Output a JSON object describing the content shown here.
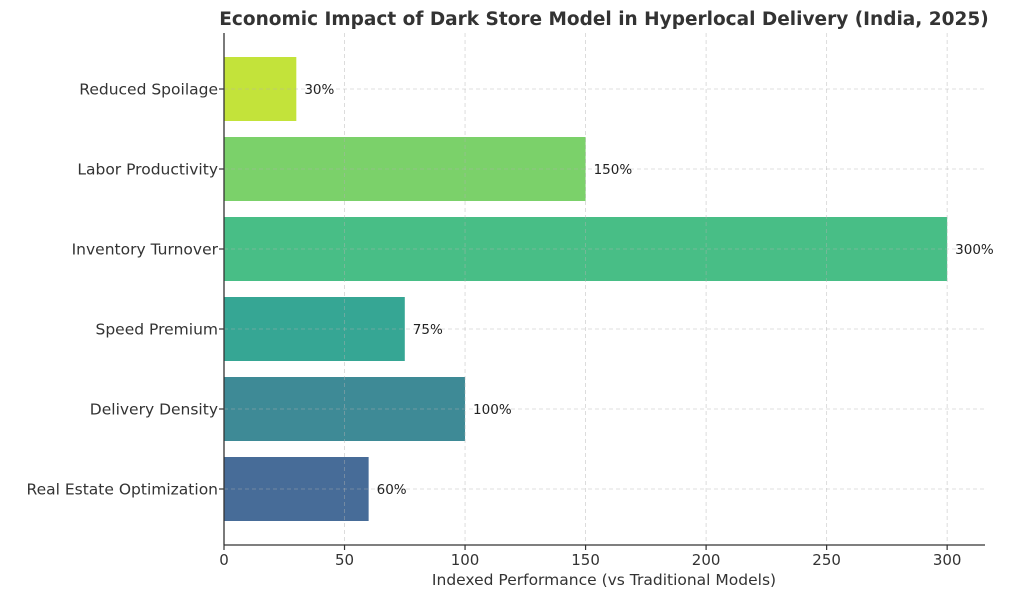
{
  "chart_data": {
    "type": "bar",
    "orientation": "horizontal",
    "title": "Economic Impact of Dark Store Model in Hyperlocal Delivery (India, 2025)",
    "xlabel": "Indexed Performance (vs Traditional Models)",
    "ylabel": "",
    "categories": [
      "Real Estate Optimization",
      "Delivery Density",
      "Speed Premium",
      "Inventory Turnover",
      "Labor Productivity",
      "Reduced Spoilage"
    ],
    "values": [
      60,
      100,
      75,
      300,
      150,
      30
    ],
    "data_labels": [
      "60%",
      "100%",
      "75%",
      "300%",
      "150%",
      "30%"
    ],
    "colors": [
      "#476c98",
      "#3e8a96",
      "#36a694",
      "#48be86",
      "#7bd16a",
      "#c3e33a"
    ],
    "xticks": [
      0,
      50,
      100,
      150,
      200,
      250,
      300
    ],
    "xlim": [
      0,
      315.7
    ],
    "grid": true
  }
}
